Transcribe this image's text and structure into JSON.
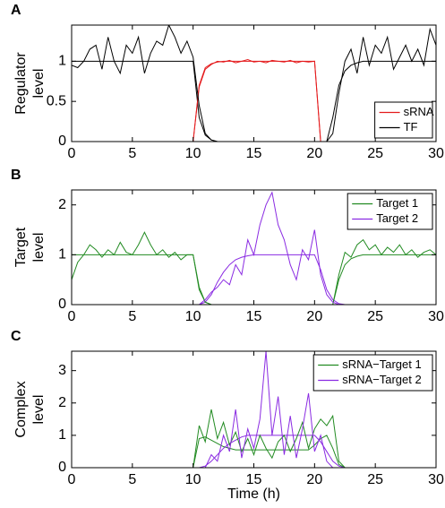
{
  "chart_data": [
    {
      "type": "line",
      "label": "A",
      "ylabel": [
        "Regulator",
        "level"
      ],
      "legend": "lower right",
      "x": [
        0,
        0.5,
        1,
        1.5,
        2,
        2.5,
        3,
        3.5,
        4,
        4.5,
        5,
        5.5,
        6,
        6.5,
        7,
        7.5,
        8,
        8.5,
        9,
        9.5,
        10,
        10.5,
        11,
        11.5,
        12,
        12.5,
        13,
        13.5,
        14,
        14.5,
        15,
        15.5,
        16,
        16.5,
        17,
        17.5,
        18,
        18.5,
        19,
        19.5,
        20,
        20.5,
        21,
        21.5,
        22,
        22.5,
        23,
        23.5,
        24,
        24.5,
        25,
        25.5,
        26,
        26.5,
        27,
        27.5,
        28,
        28.5,
        29,
        29.5,
        30
      ],
      "xlim": [
        0,
        30
      ],
      "xticks": [
        0,
        5,
        10,
        15,
        20,
        25,
        30
      ],
      "ylim": [
        0,
        1.45
      ],
      "yticks": [
        0,
        0.5,
        1
      ],
      "series": [
        {
          "name": "sRNA",
          "color": "#e41a1c",
          "values": [
            0,
            0,
            0,
            0,
            0,
            0,
            0,
            0,
            0,
            0,
            0,
            0,
            0,
            0,
            0,
            0,
            0,
            0,
            0,
            0,
            0,
            0.68,
            0.9,
            0.96,
            1.0,
            0.99,
            1.01,
            0.98,
            1.0,
            1.02,
            0.99,
            1.0,
            0.98,
            1.01,
            1.0,
            0.99,
            1.01,
            0.98,
            1.0,
            0.99,
            1.0,
            0,
            0,
            0,
            0,
            0,
            0,
            0,
            0,
            0,
            0,
            0,
            0,
            0,
            0,
            0,
            0,
            0,
            0,
            0,
            0
          ]
        },
        {
          "name": "TF",
          "color": "#000000",
          "values": [
            0.95,
            0.92,
            1.0,
            1.15,
            1.2,
            0.9,
            1.3,
            1.0,
            0.85,
            1.2,
            1.1,
            1.3,
            0.85,
            1.1,
            1.25,
            1.2,
            1.45,
            1.3,
            1.1,
            1.25,
            1.05,
            0.45,
            0.1,
            0.02,
            0,
            0,
            0,
            0,
            0,
            0,
            0,
            0,
            0,
            0,
            0,
            0,
            0,
            0,
            0,
            0,
            0,
            0,
            0,
            0.1,
            0.6,
            1.0,
            1.15,
            0.85,
            1.3,
            0.95,
            1.2,
            1.1,
            1.3,
            0.9,
            1.05,
            1.2,
            1.0,
            1.15,
            0.95,
            1.4,
            1.2
          ]
        },
        {
          "color": "#e41a1c",
          "values": [
            0,
            0,
            0,
            0,
            0,
            0,
            0,
            0,
            0,
            0,
            0,
            0,
            0,
            0,
            0,
            0,
            0,
            0,
            0,
            0,
            0,
            0.7,
            0.92,
            0.97,
            0.99,
            1,
            1,
            1,
            1,
            1,
            1,
            1,
            1,
            1,
            1,
            1,
            1,
            1,
            1,
            1,
            1,
            0,
            0,
            0,
            0,
            0,
            0,
            0,
            0,
            0,
            0,
            0,
            0,
            0,
            0,
            0,
            0,
            0,
            0,
            0,
            0
          ]
        },
        {
          "color": "#000000",
          "values": [
            1,
            1,
            1,
            1,
            1,
            1,
            1,
            1,
            1,
            1,
            1,
            1,
            1,
            1,
            1,
            1,
            1,
            1,
            1,
            1,
            1,
            0.3,
            0.08,
            0.02,
            0,
            0,
            0,
            0,
            0,
            0,
            0,
            0,
            0,
            0,
            0,
            0,
            0,
            0,
            0,
            0,
            0,
            0,
            0,
            0.3,
            0.7,
            0.88,
            0.95,
            0.98,
            1,
            1,
            1,
            1,
            1,
            1,
            1,
            1,
            1,
            1,
            1,
            1,
            1
          ]
        }
      ]
    },
    {
      "type": "line",
      "label": "B",
      "ylabel": [
        "Target",
        "level"
      ],
      "legend": "upper right",
      "x": [
        0,
        0.5,
        1,
        1.5,
        2,
        2.5,
        3,
        3.5,
        4,
        4.5,
        5,
        5.5,
        6,
        6.5,
        7,
        7.5,
        8,
        8.5,
        9,
        9.5,
        10,
        10.5,
        11,
        11.5,
        12,
        12.5,
        13,
        13.5,
        14,
        14.5,
        15,
        15.5,
        16,
        16.5,
        17,
        17.5,
        18,
        18.5,
        19,
        19.5,
        20,
        20.5,
        21,
        21.5,
        22,
        22.5,
        23,
        23.5,
        24,
        24.5,
        25,
        25.5,
        26,
        26.5,
        27,
        27.5,
        28,
        28.5,
        29,
        29.5,
        30
      ],
      "xlim": [
        0,
        30
      ],
      "xticks": [
        0,
        5,
        10,
        15,
        20,
        25,
        30
      ],
      "ylim": [
        0,
        2.3
      ],
      "yticks": [
        0,
        1,
        2
      ],
      "series": [
        {
          "name": "Target 1",
          "color": "#228b22",
          "values": [
            0.5,
            0.85,
            1.0,
            1.2,
            1.1,
            0.95,
            1.1,
            1.0,
            1.25,
            1.05,
            1.0,
            1.2,
            1.45,
            1.2,
            1.0,
            1.1,
            0.95,
            1.05,
            0.9,
            1.0,
            1.0,
            0.35,
            0.05,
            0,
            0,
            0,
            0,
            0,
            0,
            0,
            0,
            0,
            0,
            0,
            0,
            0,
            0,
            0,
            0,
            0,
            0,
            0,
            0,
            0,
            0.6,
            1.05,
            0.95,
            1.2,
            1.3,
            1.1,
            1.2,
            1.0,
            1.15,
            1.05,
            1.2,
            1.0,
            1.1,
            0.95,
            1.05,
            1.1,
            1.0
          ]
        },
        {
          "name": "Target 2",
          "color": "#8a2be2",
          "values": [
            0,
            0,
            0,
            0,
            0,
            0,
            0,
            0,
            0,
            0,
            0,
            0,
            0,
            0,
            0,
            0,
            0,
            0,
            0,
            0,
            0,
            0,
            0.1,
            0.25,
            0.35,
            0.5,
            0.4,
            0.8,
            0.6,
            1.3,
            1.0,
            1.6,
            2.0,
            2.25,
            1.6,
            1.3,
            0.8,
            0.5,
            1.1,
            0.9,
            1.5,
            0.6,
            0.2,
            0.05,
            0,
            0,
            0,
            0,
            0,
            0,
            0,
            0,
            0,
            0,
            0,
            0,
            0,
            0,
            0,
            0,
            0
          ]
        },
        {
          "color": "#228b22",
          "values": [
            1,
            1,
            1,
            1,
            1,
            1,
            1,
            1,
            1,
            1,
            1,
            1,
            1,
            1,
            1,
            1,
            1,
            1,
            1,
            1,
            1,
            0.3,
            0.05,
            0,
            0,
            0,
            0,
            0,
            0,
            0,
            0,
            0,
            0,
            0,
            0,
            0,
            0,
            0,
            0,
            0,
            0,
            0,
            0,
            0,
            0.5,
            0.8,
            0.92,
            0.97,
            1,
            1,
            1,
            1,
            1,
            1,
            1,
            1,
            1,
            1,
            1,
            1,
            1
          ]
        },
        {
          "color": "#8a2be2",
          "values": [
            0,
            0,
            0,
            0,
            0,
            0,
            0,
            0,
            0,
            0,
            0,
            0,
            0,
            0,
            0,
            0,
            0,
            0,
            0,
            0,
            0,
            0,
            0.05,
            0.2,
            0.45,
            0.65,
            0.8,
            0.9,
            0.95,
            0.98,
            1,
            1,
            1,
            1,
            1,
            1,
            1,
            1,
            1,
            1,
            1,
            0.7,
            0.3,
            0.1,
            0.02,
            0,
            0,
            0,
            0,
            0,
            0,
            0,
            0,
            0,
            0,
            0,
            0,
            0,
            0,
            0,
            0
          ]
        }
      ]
    },
    {
      "type": "line",
      "label": "C",
      "ylabel": [
        "Complex",
        "level"
      ],
      "xlabel": "Time (h)",
      "legend": "upper right",
      "x": [
        0,
        0.5,
        1,
        1.5,
        2,
        2.5,
        3,
        3.5,
        4,
        4.5,
        5,
        5.5,
        6,
        6.5,
        7,
        7.5,
        8,
        8.5,
        9,
        9.5,
        10,
        10.5,
        11,
        11.5,
        12,
        12.5,
        13,
        13.5,
        14,
        14.5,
        15,
        15.5,
        16,
        16.5,
        17,
        17.5,
        18,
        18.5,
        19,
        19.5,
        20,
        20.5,
        21,
        21.5,
        22,
        22.5,
        23,
        23.5,
        24,
        24.5,
        25,
        25.5,
        26,
        26.5,
        27,
        27.5,
        28,
        28.5,
        29,
        29.5,
        30
      ],
      "xlim": [
        0,
        30
      ],
      "xticks": [
        0,
        5,
        10,
        15,
        20,
        25,
        30
      ],
      "ylim": [
        0,
        3.6
      ],
      "yticks": [
        0,
        1,
        2,
        3
      ],
      "series": [
        {
          "name": "sRNA−Target 1",
          "color": "#228b22",
          "values": [
            0,
            0,
            0,
            0,
            0,
            0,
            0,
            0,
            0,
            0,
            0,
            0,
            0,
            0,
            0,
            0,
            0,
            0,
            0,
            0,
            0,
            1.3,
            0.8,
            1.8,
            0.9,
            1.4,
            0.7,
            1.1,
            0.5,
            0.9,
            0.4,
            1.0,
            0.6,
            0.3,
            0.8,
            1.0,
            0.5,
            0.9,
            1.4,
            0.6,
            1.2,
            1.5,
            1.3,
            1.6,
            0.2,
            0,
            0,
            0,
            0,
            0,
            0,
            0,
            0,
            0,
            0,
            0,
            0,
            0,
            0,
            0,
            0
          ]
        },
        {
          "name": "sRNA−Target 2",
          "color": "#8a2be2",
          "values": [
            0,
            0,
            0,
            0,
            0,
            0,
            0,
            0,
            0,
            0,
            0,
            0,
            0,
            0,
            0,
            0,
            0,
            0,
            0,
            0,
            0,
            0,
            0,
            0.4,
            0.2,
            1.0,
            0.5,
            1.8,
            0.3,
            1.2,
            0.6,
            1.5,
            3.6,
            1.0,
            2.2,
            0.4,
            1.6,
            0.3,
            1.2,
            2.3,
            0.5,
            1.0,
            0.2,
            0,
            0,
            0,
            0,
            0,
            0,
            0,
            0,
            0,
            0,
            0,
            0,
            0,
            0,
            0,
            0,
            0,
            0
          ]
        },
        {
          "color": "#228b22",
          "values": [
            0,
            0,
            0,
            0,
            0,
            0,
            0,
            0,
            0,
            0,
            0,
            0,
            0,
            0,
            0,
            0,
            0,
            0,
            0,
            0,
            0,
            0.9,
            0.95,
            0.85,
            0.75,
            0.65,
            0.6,
            0.55,
            0.55,
            0.55,
            0.55,
            0.55,
            0.55,
            0.55,
            0.55,
            0.55,
            0.55,
            0.55,
            0.55,
            0.55,
            0.7,
            0.9,
            1.0,
            0.6,
            0.1,
            0,
            0,
            0,
            0,
            0,
            0,
            0,
            0,
            0,
            0,
            0,
            0,
            0,
            0,
            0,
            0
          ]
        },
        {
          "color": "#8a2be2",
          "values": [
            0,
            0,
            0,
            0,
            0,
            0,
            0,
            0,
            0,
            0,
            0,
            0,
            0,
            0,
            0,
            0,
            0,
            0,
            0,
            0,
            0,
            0,
            0.05,
            0.2,
            0.4,
            0.6,
            0.75,
            0.85,
            0.95,
            1.0,
            1,
            1,
            1,
            1,
            1,
            1,
            1,
            1,
            1,
            1,
            1,
            0.8,
            0.5,
            0.2,
            0.05,
            0,
            0,
            0,
            0,
            0,
            0,
            0,
            0,
            0,
            0,
            0,
            0,
            0,
            0,
            0,
            0
          ]
        }
      ]
    }
  ]
}
